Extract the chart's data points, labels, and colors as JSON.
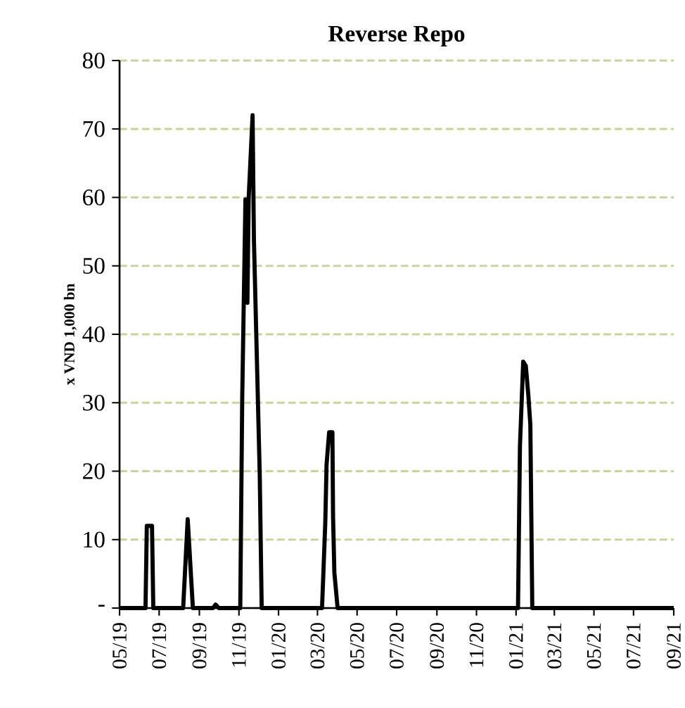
{
  "chart_data": {
    "type": "line",
    "title": "Reverse Repo",
    "ylabel": "x VND 1,000 bn",
    "x": [
      "2019-05-01",
      "2019-06-10",
      "2019-06-12",
      "2019-06-20",
      "2019-06-22",
      "2019-08-07",
      "2019-08-14",
      "2019-08-22",
      "2019-09-22",
      "2019-09-26",
      "2019-10-01",
      "2019-11-03",
      "2019-11-06",
      "2019-11-11",
      "2019-11-14",
      "2019-11-16",
      "2019-11-22",
      "2019-11-24",
      "2019-12-03",
      "2019-12-06",
      "2020-03-08",
      "2020-03-13",
      "2020-03-15",
      "2020-03-19",
      "2020-03-24",
      "2020-03-25",
      "2020-03-27",
      "2020-04-01",
      "2021-01-04",
      "2021-01-07",
      "2021-01-12",
      "2021-01-16",
      "2021-01-20",
      "2021-01-23",
      "2021-01-26",
      "2021-09-01"
    ],
    "series": [
      {
        "color": "#000000",
        "values": [
          0,
          0,
          12,
          12,
          0,
          0,
          13,
          0,
          0,
          0.5,
          0,
          0,
          30.6,
          59.7,
          44.6,
          60,
          72,
          54,
          19.6,
          0,
          0,
          12.4,
          21,
          25.7,
          25.7,
          13.4,
          5.2,
          0,
          0,
          23.7,
          36,
          35.4,
          31,
          26.8,
          0,
          0
        ]
      }
    ],
    "xlim": [
      "2019-05-01",
      "2021-09-01"
    ],
    "xticks": [
      {
        "value": "2019-05-01",
        "label": "05/19"
      },
      {
        "value": "2019-07-01",
        "label": "07/19"
      },
      {
        "value": "2019-09-01",
        "label": "09/19"
      },
      {
        "value": "2019-11-01",
        "label": "11/19"
      },
      {
        "value": "2020-01-01",
        "label": "01/20"
      },
      {
        "value": "2020-03-01",
        "label": "03/20"
      },
      {
        "value": "2020-05-01",
        "label": "05/20"
      },
      {
        "value": "2020-07-01",
        "label": "07/20"
      },
      {
        "value": "2020-09-01",
        "label": "09/20"
      },
      {
        "value": "2020-11-01",
        "label": "11/20"
      },
      {
        "value": "2021-01-01",
        "label": "01/21"
      },
      {
        "value": "2021-03-01",
        "label": "03/21"
      },
      {
        "value": "2021-05-01",
        "label": "05/21"
      },
      {
        "value": "2021-07-01",
        "label": "07/21"
      },
      {
        "value": "2021-09-01",
        "label": "09/21"
      }
    ],
    "ylim": [
      0,
      80
    ],
    "yticks": [
      {
        "value": 0,
        "label": "-"
      },
      10,
      20,
      30,
      40,
      50,
      60,
      70,
      80
    ],
    "grid": "y",
    "line_style": "solid",
    "marker": "none"
  }
}
